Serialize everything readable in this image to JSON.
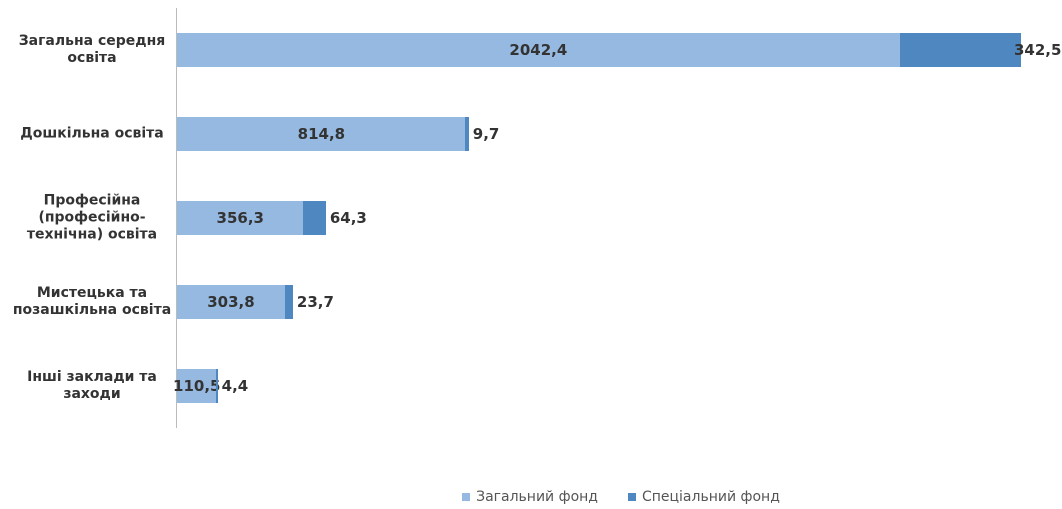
{
  "chart_data": {
    "type": "bar",
    "orientation": "horizontal",
    "stacked": true,
    "categories": [
      "Загальна середня освіта",
      "Дошкільна освіта",
      "Професійна (професійно-технічна) освіта",
      "Мистецька та позашкільна освіта",
      "Інші заклади та заходи"
    ],
    "series": [
      {
        "name": "Загальний фонд",
        "color": "#95b9e1",
        "values": [
          2042.4,
          814.8,
          356.3,
          303.8,
          110.5
        ],
        "value_labels": [
          "2042,4",
          "814,8",
          "356,3",
          "303,8",
          "110,5"
        ]
      },
      {
        "name": "Спеціальний фонд",
        "color": "#4f87c0",
        "values": [
          342.5,
          9.7,
          64.3,
          23.7,
          4.4
        ],
        "value_labels": [
          "342,5",
          "9,7",
          "64,3",
          "23,7",
          "4,4"
        ]
      }
    ],
    "legend": "bottom"
  }
}
